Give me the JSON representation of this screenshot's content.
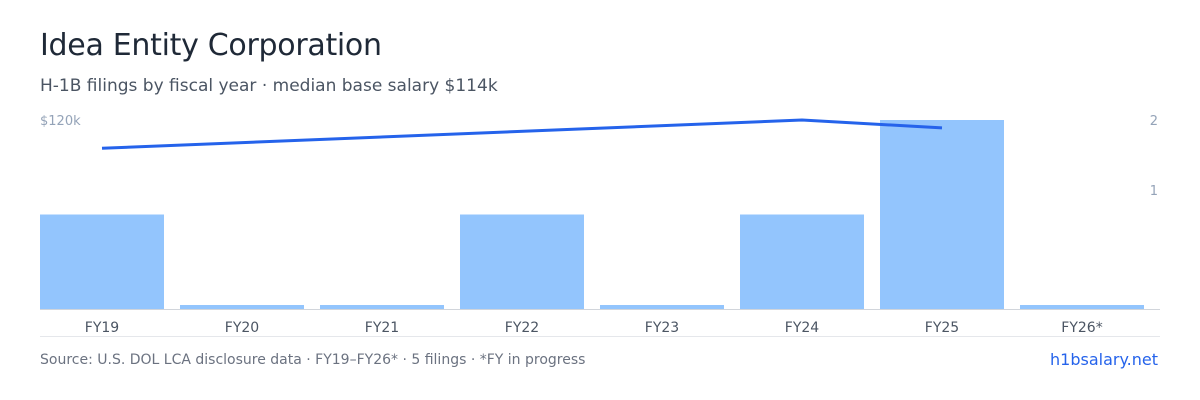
{
  "title": "Idea Entity Corporation",
  "subtitle": "H-1B filings by fiscal year · median base salary $114k",
  "footer": {
    "source": "Source: U.S. DOL LCA disclosure data · FY19–FY26* · 5 filings · *FY in progress",
    "brand": "h1bsalary.net"
  },
  "colors": {
    "bar": "#93c5fd",
    "line": "#2563eb",
    "axis_text": "#94a3b8",
    "label_text": "#4b5563",
    "baseline": "#d1d5db"
  },
  "chart_data": {
    "type": "bar",
    "categories": [
      "FY19",
      "FY20",
      "FY21",
      "FY22",
      "FY23",
      "FY24",
      "FY25",
      "FY26*"
    ],
    "series": [
      {
        "type": "bar",
        "axis": "right",
        "values": [
          1,
          0,
          0,
          1,
          0,
          1,
          2,
          0
        ]
      },
      {
        "type": "line",
        "axis": "left",
        "values": [
          102000,
          null,
          null,
          null,
          null,
          120000,
          115000,
          null
        ]
      }
    ],
    "left_axis": {
      "ylim": [
        0,
        120000
      ],
      "tick_labels": [
        "$120k"
      ]
    },
    "right_axis": {
      "ylim": [
        0,
        2
      ],
      "tick_labels": [
        "2",
        "1"
      ]
    }
  }
}
